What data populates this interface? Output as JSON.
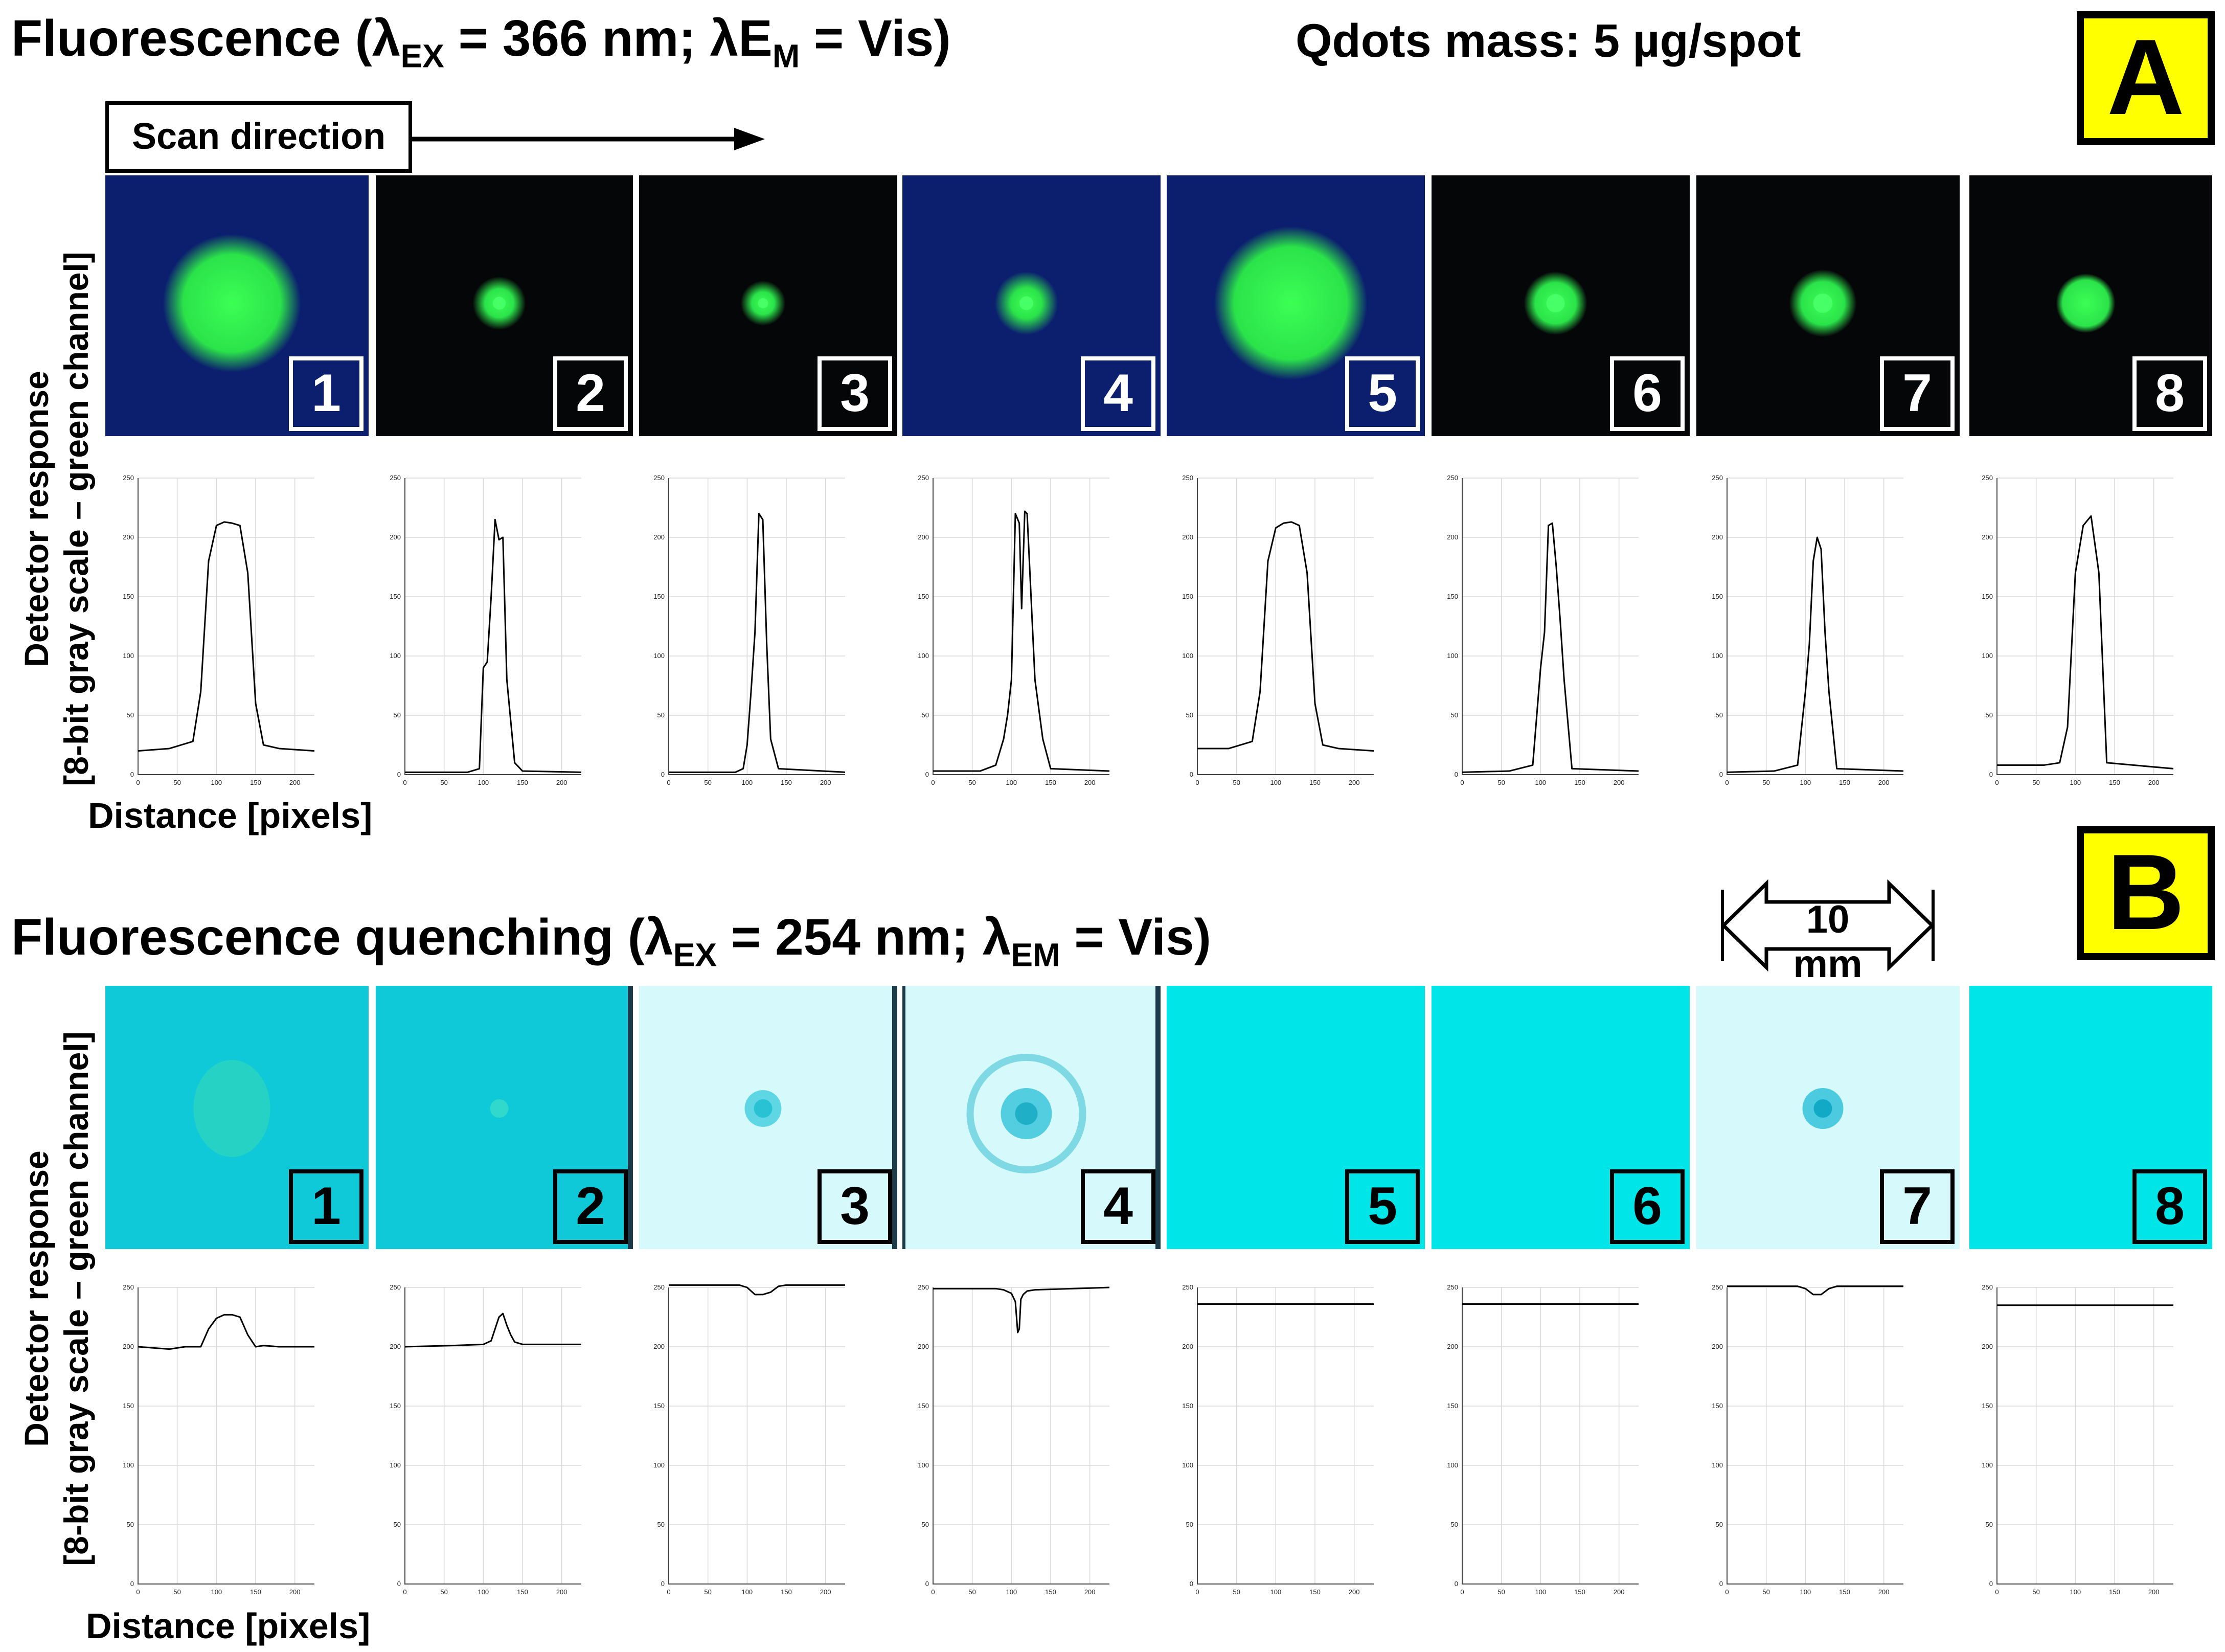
{
  "panelA": {
    "title_main": "Fluorescence (λ",
    "title_sub1": "EX",
    "title_mid": " = 366 nm; λE",
    "title_sub2": "M",
    "title_end": " = Vis)",
    "mass_label": "Qdots mass: 5 µg/spot",
    "tag": "A",
    "scan_label": "Scan direction",
    "ylabel_line1": "Detector response",
    "ylabel_line2": "[8-bit gray scale – green channel]",
    "xlabel": "Distance [pixels]",
    "spots": [
      "1",
      "2",
      "3",
      "4",
      "5",
      "6",
      "7",
      "8"
    ]
  },
  "panelB": {
    "title_main": "Fluorescence quenching (λ",
    "title_sub1": "EX",
    "title_mid": " = 254 nm; λ",
    "title_sub2": "EM",
    "title_end": " = Vis)",
    "scale_label": "10 mm",
    "tag": "B",
    "ylabel_line1": "Detector response",
    "ylabel_line2": "[8-bit gray scale – green channel]",
    "xlabel": "Distance [pixels]",
    "spots": [
      "1",
      "2",
      "3",
      "4",
      "5",
      "6",
      "7",
      "8"
    ]
  },
  "colors": {
    "fluor_bg_blue": "#0b1f6e",
    "fluor_bg_black": "#050608",
    "fluor_spot": "#2be34a",
    "quench_teal": "#0fc9d8",
    "quench_cyan": "#00e5e8",
    "quench_pale": "#d6fafb",
    "tag_yellow": "#ffff00"
  },
  "chart_data": [
    {
      "type": "line",
      "panel": "A",
      "xlabel": "Distance [pixels]",
      "ylabel": "Detector response [8-bit gray scale – green channel]",
      "xticks": [
        0,
        50,
        100,
        150,
        200
      ],
      "yticks": [
        0,
        50,
        100,
        150,
        200,
        250
      ],
      "xlim": [
        0,
        225
      ],
      "ylim": [
        0,
        250
      ],
      "series": [
        {
          "name": "1",
          "x": [
            0,
            40,
            70,
            80,
            90,
            100,
            110,
            120,
            130,
            140,
            150,
            160,
            180,
            225
          ],
          "y": [
            20,
            22,
            28,
            70,
            180,
            210,
            213,
            212,
            210,
            170,
            60,
            25,
            22,
            20
          ]
        },
        {
          "name": "2",
          "x": [
            0,
            80,
            95,
            100,
            105,
            110,
            115,
            120,
            125,
            130,
            140,
            150,
            225
          ],
          "y": [
            2,
            2,
            5,
            90,
            95,
            150,
            215,
            198,
            200,
            80,
            10,
            3,
            2
          ]
        },
        {
          "name": "3",
          "x": [
            0,
            85,
            95,
            100,
            105,
            110,
            115,
            120,
            125,
            130,
            140,
            225
          ],
          "y": [
            2,
            2,
            5,
            25,
            70,
            120,
            220,
            215,
            110,
            30,
            5,
            2
          ]
        },
        {
          "name": "4",
          "x": [
            0,
            60,
            80,
            90,
            95,
            100,
            105,
            110,
            113,
            117,
            120,
            130,
            140,
            150,
            225
          ],
          "y": [
            3,
            3,
            8,
            30,
            50,
            80,
            220,
            212,
            140,
            222,
            220,
            80,
            30,
            5,
            3
          ]
        },
        {
          "name": "5",
          "x": [
            0,
            40,
            70,
            80,
            90,
            100,
            110,
            120,
            130,
            140,
            150,
            160,
            180,
            225
          ],
          "y": [
            22,
            22,
            28,
            70,
            180,
            208,
            212,
            213,
            210,
            170,
            60,
            25,
            22,
            20
          ]
        },
        {
          "name": "6",
          "x": [
            0,
            60,
            90,
            100,
            105,
            110,
            115,
            120,
            125,
            130,
            140,
            225
          ],
          "y": [
            2,
            3,
            8,
            90,
            120,
            210,
            212,
            175,
            130,
            80,
            5,
            3
          ]
        },
        {
          "name": "7",
          "x": [
            0,
            60,
            90,
            100,
            105,
            110,
            115,
            120,
            125,
            130,
            140,
            225
          ],
          "y": [
            2,
            3,
            8,
            70,
            110,
            180,
            200,
            190,
            120,
            70,
            5,
            3
          ]
        },
        {
          "name": "8",
          "x": [
            0,
            60,
            80,
            90,
            100,
            110,
            120,
            130,
            140,
            225
          ],
          "y": [
            8,
            8,
            10,
            40,
            170,
            210,
            218,
            170,
            10,
            5
          ]
        }
      ]
    },
    {
      "type": "line",
      "panel": "B",
      "xlabel": "Distance [pixels]",
      "ylabel": "Detector response [8-bit gray scale – green channel]",
      "xticks": [
        0,
        50,
        100,
        150,
        200
      ],
      "yticks": [
        0,
        50,
        100,
        150,
        200,
        250
      ],
      "xlim": [
        0,
        225
      ],
      "ylim": [
        0,
        250
      ],
      "series": [
        {
          "name": "1",
          "x": [
            0,
            40,
            60,
            80,
            90,
            100,
            110,
            120,
            130,
            140,
            150,
            160,
            180,
            225
          ],
          "y": [
            200,
            198,
            200,
            200,
            215,
            224,
            227,
            227,
            225,
            210,
            200,
            201,
            200,
            200
          ]
        },
        {
          "name": "2",
          "x": [
            0,
            60,
            100,
            110,
            115,
            120,
            125,
            130,
            135,
            140,
            150,
            225
          ],
          "y": [
            200,
            201,
            202,
            205,
            215,
            225,
            228,
            218,
            210,
            204,
            202,
            202
          ]
        },
        {
          "name": "3",
          "x": [
            0,
            90,
            100,
            110,
            120,
            130,
            140,
            150,
            225
          ],
          "y": [
            252,
            252,
            250,
            244,
            244,
            246,
            251,
            252,
            252
          ]
        },
        {
          "name": "4",
          "x": [
            0,
            80,
            90,
            100,
            105,
            108,
            110,
            112,
            115,
            120,
            130,
            225
          ],
          "y": [
            249,
            249,
            248,
            245,
            238,
            212,
            215,
            240,
            244,
            247,
            248,
            250
          ]
        },
        {
          "name": "5",
          "x": [
            0,
            225
          ],
          "y": [
            236,
            236
          ]
        },
        {
          "name": "6",
          "x": [
            0,
            225
          ],
          "y": [
            236,
            236
          ]
        },
        {
          "name": "7",
          "x": [
            0,
            90,
            100,
            110,
            120,
            130,
            140,
            225
          ],
          "y": [
            251,
            251,
            249,
            244,
            244,
            249,
            251,
            251
          ]
        },
        {
          "name": "8",
          "x": [
            0,
            225
          ],
          "y": [
            235,
            235
          ]
        }
      ]
    }
  ]
}
